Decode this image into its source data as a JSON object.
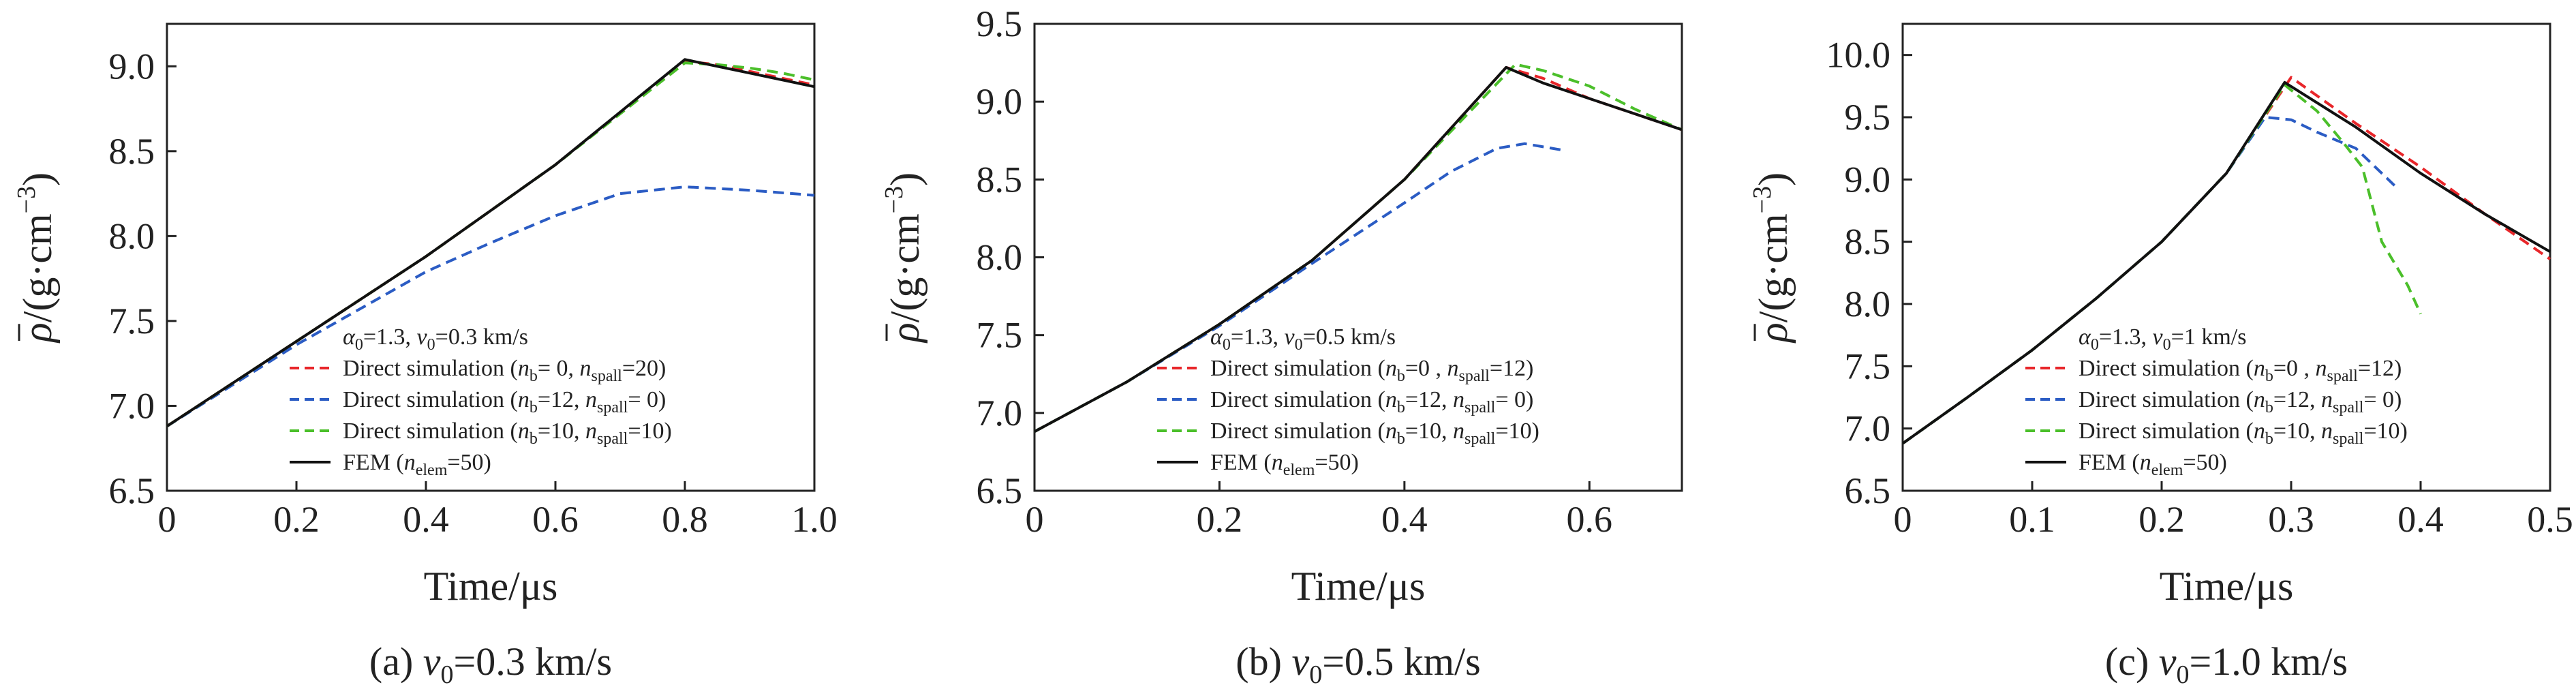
{
  "chart_data": [
    {
      "type": "line",
      "caption": {
        "prefix": "(a) ",
        "var": "v",
        "sub": "0",
        "rest": "=0.3 km/s"
      },
      "xlabel": "Time/μs",
      "ylabel": {
        "rho": "ρ",
        "rest": "/(g·cm",
        "exp": "−3",
        "close": ")"
      },
      "xlim": [
        0,
        1.0
      ],
      "ylim": [
        6.5,
        9.25
      ],
      "xticks": [
        "0",
        "0.2",
        "0.4",
        "0.6",
        "0.8",
        "1.0"
      ],
      "xtick_values": [
        0,
        0.2,
        0.4,
        0.6,
        0.8,
        1.0
      ],
      "yticks": [
        "6.5",
        "7.0",
        "7.5",
        "8.0",
        "8.5",
        "9.0"
      ],
      "ytick_values": [
        6.5,
        7.0,
        7.5,
        8.0,
        8.5,
        9.0
      ],
      "legend_title": [
        "α",
        "0",
        "=1.3, ",
        "v",
        "0",
        "=0.3 km/s"
      ],
      "series": [
        {
          "name": [
            "Direct simulation (",
            "n",
            "b",
            "= 0, ",
            "n",
            "spall",
            "=20)"
          ],
          "color": "#e8262a",
          "dash": true,
          "x": [
            0,
            0.2,
            0.4,
            0.6,
            0.8,
            0.85,
            0.9,
            0.95,
            1.0
          ],
          "y": [
            6.88,
            7.38,
            7.88,
            8.42,
            9.03,
            9.01,
            8.97,
            8.93,
            8.89
          ]
        },
        {
          "name": [
            "Direct simulation (",
            "n",
            "b",
            "=12, ",
            "n",
            "spall",
            "= 0)"
          ],
          "color": "#2b5cc4",
          "dash": true,
          "x": [
            0,
            0.2,
            0.4,
            0.5,
            0.6,
            0.7,
            0.8,
            0.9,
            1.0
          ],
          "y": [
            6.88,
            7.36,
            7.79,
            7.96,
            8.12,
            8.25,
            8.29,
            8.27,
            8.24
          ]
        },
        {
          "name": [
            "Direct simulation (",
            "n",
            "b",
            "=10, ",
            "n",
            "spall",
            "=10)"
          ],
          "color": "#4bbf2a",
          "dash": true,
          "x": [
            0,
            0.2,
            0.4,
            0.6,
            0.8,
            0.85,
            0.9,
            0.95,
            1.0
          ],
          "y": [
            6.88,
            7.38,
            7.88,
            8.42,
            9.02,
            9.01,
            8.99,
            8.96,
            8.92
          ]
        },
        {
          "name": [
            "FEM (",
            "n",
            "elem",
            "=50)"
          ],
          "color": "#111111",
          "dash": false,
          "x": [
            0,
            0.2,
            0.4,
            0.6,
            0.8,
            0.85,
            0.9,
            0.95,
            1.0
          ],
          "y": [
            6.88,
            7.38,
            7.88,
            8.42,
            9.04,
            9.0,
            8.96,
            8.92,
            8.88
          ]
        }
      ]
    },
    {
      "type": "line",
      "caption": {
        "prefix": "(b) ",
        "var": "v",
        "sub": "0",
        "rest": "=0.5 km/s"
      },
      "xlabel": "Time/μs",
      "ylabel": {
        "rho": "ρ",
        "rest": "/(g·cm",
        "exp": "−3",
        "close": ")"
      },
      "xlim": [
        0,
        0.7
      ],
      "ylim": [
        6.5,
        9.5
      ],
      "xticks": [
        "0",
        "0.2",
        "0.4",
        "0.6"
      ],
      "xtick_values": [
        0,
        0.2,
        0.4,
        0.6
      ],
      "yticks": [
        "6.5",
        "7.0",
        "7.5",
        "8.0",
        "8.5",
        "9.0",
        "9.5"
      ],
      "ytick_values": [
        6.5,
        7.0,
        7.5,
        8.0,
        8.5,
        9.0,
        9.5
      ],
      "legend_title": [
        "α",
        "0",
        "=1.3, ",
        "v",
        "0",
        "=0.5 km/s"
      ],
      "series": [
        {
          "name": [
            "Direct simulation (",
            "n",
            "b",
            "=0 , ",
            "n",
            "spall",
            "=12)"
          ],
          "color": "#e8262a",
          "dash": true,
          "x": [
            0,
            0.1,
            0.2,
            0.3,
            0.4,
            0.51,
            0.55,
            0.6,
            0.65,
            0.7
          ],
          "y": [
            6.88,
            7.2,
            7.57,
            7.98,
            8.5,
            9.22,
            9.15,
            9.02,
            8.92,
            8.82
          ]
        },
        {
          "name": [
            "Direct simulation (",
            "n",
            "b",
            "=12, ",
            "n",
            "spall",
            "= 0)"
          ],
          "color": "#2b5cc4",
          "dash": true,
          "x": [
            0,
            0.1,
            0.2,
            0.3,
            0.4,
            0.45,
            0.5,
            0.53,
            0.57
          ],
          "y": [
            6.88,
            7.2,
            7.56,
            7.96,
            8.35,
            8.55,
            8.7,
            8.73,
            8.69
          ]
        },
        {
          "name": [
            "Direct simulation (",
            "n",
            "b",
            "=10, ",
            "n",
            "spall",
            "=10)"
          ],
          "color": "#4bbf2a",
          "dash": true,
          "x": [
            0,
            0.1,
            0.2,
            0.3,
            0.4,
            0.52,
            0.55,
            0.6,
            0.65,
            0.7
          ],
          "y": [
            6.88,
            7.2,
            7.57,
            7.98,
            8.5,
            9.24,
            9.2,
            9.1,
            8.95,
            8.82
          ]
        },
        {
          "name": [
            "FEM (",
            "n",
            "elem",
            "=50)"
          ],
          "color": "#111111",
          "dash": false,
          "x": [
            0,
            0.1,
            0.2,
            0.3,
            0.4,
            0.51,
            0.55,
            0.6,
            0.65,
            0.7
          ],
          "y": [
            6.88,
            7.2,
            7.57,
            7.98,
            8.5,
            9.22,
            9.12,
            9.02,
            8.92,
            8.82
          ]
        }
      ]
    },
    {
      "type": "line",
      "caption": {
        "prefix": "(c) ",
        "var": "v",
        "sub": "0",
        "rest": "=1.0 km/s"
      },
      "xlabel": "Time/μs",
      "ylabel": {
        "rho": "ρ",
        "rest": "/(g·cm",
        "exp": "−3",
        "close": ")"
      },
      "xlim": [
        0,
        0.5
      ],
      "ylim": [
        6.5,
        10.25
      ],
      "xticks": [
        "0",
        "0.1",
        "0.2",
        "0.3",
        "0.4",
        "0.5"
      ],
      "xtick_values": [
        0,
        0.1,
        0.2,
        0.3,
        0.4,
        0.5
      ],
      "yticks": [
        "6.5",
        "7.0",
        "7.5",
        "8.0",
        "8.5",
        "9.0",
        "9.5",
        "10.0"
      ],
      "ytick_values": [
        6.5,
        7.0,
        7.5,
        8.0,
        8.5,
        9.0,
        9.5,
        10.0
      ],
      "legend_title": [
        "α",
        "0",
        "=1.3, ",
        "v",
        "0",
        "=1 km/s"
      ],
      "series": [
        {
          "name": [
            "Direct simulation (",
            "n",
            "b",
            "=0 , ",
            "n",
            "spall",
            "=12)"
          ],
          "color": "#e8262a",
          "dash": true,
          "x": [
            0,
            0.05,
            0.1,
            0.15,
            0.2,
            0.25,
            0.3,
            0.35,
            0.4,
            0.45,
            0.5
          ],
          "y": [
            6.88,
            7.25,
            7.63,
            8.05,
            8.5,
            9.05,
            9.82,
            9.45,
            9.1,
            8.72,
            8.36
          ]
        },
        {
          "name": [
            "Direct simulation (",
            "n",
            "b",
            "=12, ",
            "n",
            "spall",
            "= 0)"
          ],
          "color": "#2b5cc4",
          "dash": true,
          "x": [
            0,
            0.05,
            0.1,
            0.15,
            0.2,
            0.25,
            0.28,
            0.3,
            0.32,
            0.35,
            0.38
          ],
          "y": [
            6.88,
            7.25,
            7.63,
            8.05,
            8.5,
            9.05,
            9.5,
            9.48,
            9.38,
            9.25,
            8.95
          ]
        },
        {
          "name": [
            "Direct simulation (",
            "n",
            "b",
            "=10, ",
            "n",
            "spall",
            "=10)"
          ],
          "color": "#4bbf2a",
          "dash": true,
          "x": [
            0,
            0.05,
            0.1,
            0.15,
            0.2,
            0.25,
            0.295,
            0.32,
            0.34,
            0.355,
            0.37,
            0.39,
            0.4
          ],
          "y": [
            6.88,
            7.25,
            7.63,
            8.05,
            8.5,
            9.05,
            9.76,
            9.55,
            9.3,
            9.1,
            8.5,
            8.15,
            7.92
          ]
        },
        {
          "name": [
            "FEM (",
            "n",
            "elem",
            "=50)"
          ],
          "color": "#111111",
          "dash": false,
          "x": [
            0,
            0.05,
            0.1,
            0.15,
            0.2,
            0.25,
            0.295,
            0.35,
            0.4,
            0.45,
            0.5
          ],
          "y": [
            6.88,
            7.25,
            7.63,
            8.05,
            8.5,
            9.05,
            9.78,
            9.42,
            9.05,
            8.72,
            8.42
          ]
        }
      ]
    }
  ]
}
